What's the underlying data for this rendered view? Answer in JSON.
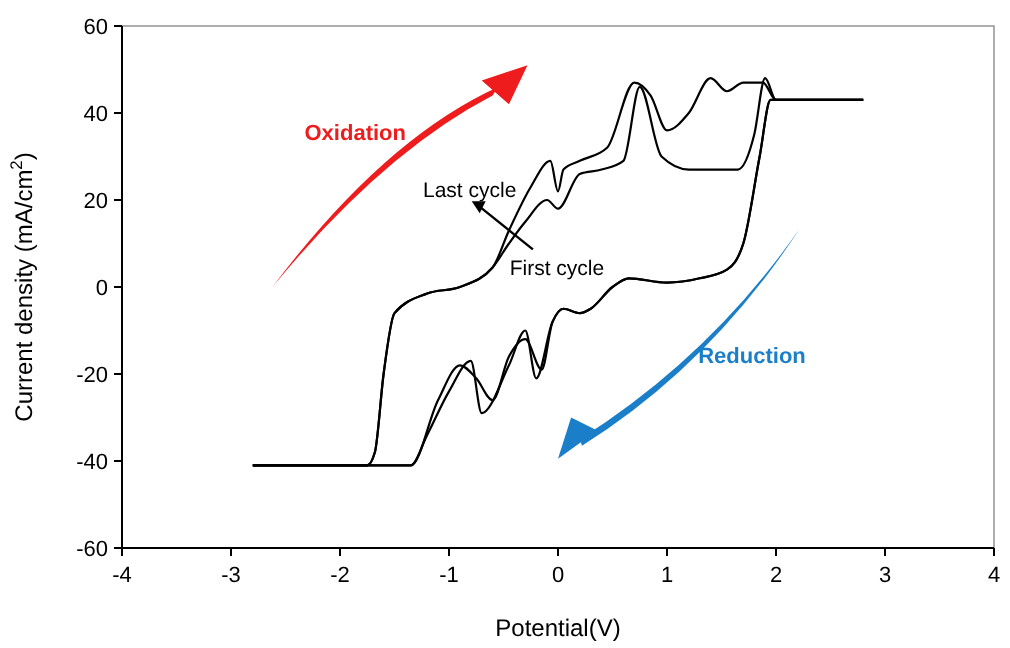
{
  "chart_data": {
    "type": "line",
    "xlabel": "Potential(V)",
    "ylabel": "Current density (mA/cm$^{2}$)",
    "xlim": [
      -4,
      4
    ],
    "xticks": [
      -4,
      -3,
      -2,
      -1,
      0,
      1,
      2,
      3,
      4
    ],
    "ylim": [
      -60,
      60
    ],
    "yticks": [
      -60,
      -40,
      -20,
      0,
      20,
      40,
      60
    ],
    "line_style": "solid",
    "series": [
      {
        "color": "#000000",
        "x": [
          -2.8,
          -1.75,
          -1.68,
          -1.6,
          -1.5,
          -1.2,
          -0.9,
          -0.6,
          -0.45,
          -0.3,
          -0.1,
          0.0,
          0.2,
          0.4,
          0.6,
          0.75,
          0.95,
          1.2,
          1.5,
          1.65,
          1.8,
          1.9,
          2.0,
          2.8
        ],
        "values": [
          -41,
          -41,
          -38,
          -20,
          -6,
          -1.5,
          0,
          4.5,
          10,
          15,
          20,
          18,
          26,
          27,
          29,
          46,
          30,
          27,
          27,
          27,
          35,
          48,
          43,
          43
        ]
      },
      {
        "color": "#000000",
        "x": [
          -2.8,
          -1.35,
          -1.1,
          -0.9,
          -0.75,
          -0.6,
          -0.45,
          -0.3,
          -0.15,
          -0.05,
          0.05,
          0.2,
          0.3,
          0.5,
          0.65,
          1.0,
          1.3,
          1.55,
          1.7,
          1.85,
          1.95,
          2.8
        ],
        "values": [
          -41,
          -41,
          -26,
          -18,
          -21,
          -26,
          -16,
          -12,
          -19,
          -8,
          -5,
          -6,
          -5,
          0,
          2,
          1,
          2,
          4,
          10,
          30,
          43,
          43
        ]
      },
      {
        "color": "#000000",
        "x": [
          -2.8,
          -1.75,
          -1.68,
          -1.6,
          -1.5,
          -1.2,
          -0.9,
          -0.6,
          -0.45,
          -0.25,
          -0.07,
          0.0,
          0.05,
          0.2,
          0.45,
          0.7,
          0.85,
          1.0,
          1.2,
          1.4,
          1.55,
          1.7,
          1.88,
          2.0,
          2.8
        ],
        "values": [
          -41,
          -41,
          -38,
          -20,
          -6,
          -1.5,
          0,
          4.5,
          13,
          23,
          29,
          22,
          27,
          29,
          32,
          47,
          44,
          36,
          40,
          48,
          45,
          47,
          47,
          43,
          43
        ]
      },
      {
        "color": "#000000",
        "x": [
          -2.8,
          -1.35,
          -1.2,
          -1.0,
          -0.8,
          -0.7,
          -0.45,
          -0.3,
          -0.2,
          -0.05,
          0.05,
          0.2,
          0.3,
          0.5,
          0.65,
          1.0,
          1.3,
          1.55,
          1.7,
          1.85,
          1.95,
          2.8
        ],
        "values": [
          -41,
          -41,
          -34,
          -24,
          -17,
          -29,
          -18,
          -10,
          -21,
          -8,
          -5,
          -6,
          -5,
          0,
          2,
          1,
          2,
          4,
          10,
          30,
          43,
          43
        ]
      }
    ],
    "annotations": [
      "Oxidation",
      "Reduction",
      "Last cycle",
      "First cycle"
    ]
  }
}
